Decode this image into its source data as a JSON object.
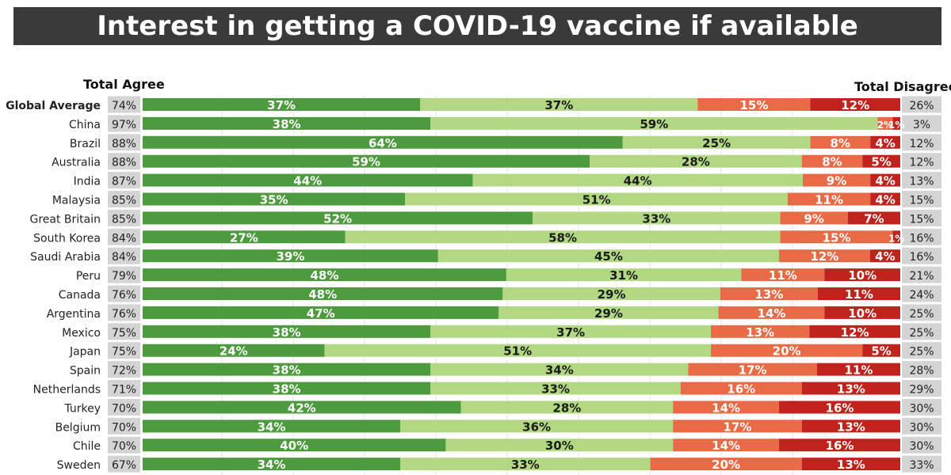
{
  "chart_data": {
    "type": "bar",
    "title": "Interest in getting a COVID-19 vaccine if available",
    "left_header": "Total Agree",
    "right_header": "Total Disagree",
    "segment_colors": [
      "#4e9a3f",
      "#b3d884",
      "#e86a47",
      "#c0231e"
    ],
    "rows": [
      {
        "label": "Global Average",
        "bold": true,
        "agree_total": "74%",
        "disagree_total": "26%",
        "values": [
          37,
          37,
          15,
          12
        ],
        "labels": [
          "37%",
          "37%",
          "15%",
          "12%"
        ]
      },
      {
        "label": "China",
        "agree_total": "97%",
        "disagree_total": "3%",
        "values": [
          38,
          59,
          2,
          1
        ],
        "labels": [
          "38%",
          "59%",
          "2%",
          "1%"
        ]
      },
      {
        "label": "Brazil",
        "agree_total": "88%",
        "disagree_total": "12%",
        "values": [
          64,
          25,
          8,
          4
        ],
        "labels": [
          "64%",
          "25%",
          "8%",
          "4%"
        ]
      },
      {
        "label": "Australia",
        "agree_total": "88%",
        "disagree_total": "12%",
        "values": [
          59,
          28,
          8,
          5
        ],
        "labels": [
          "59%",
          "28%",
          "8%",
          "5%"
        ]
      },
      {
        "label": "India",
        "agree_total": "87%",
        "disagree_total": "13%",
        "values": [
          44,
          44,
          9,
          4
        ],
        "labels": [
          "44%",
          "44%",
          "9%",
          "4%"
        ]
      },
      {
        "label": "Malaysia",
        "agree_total": "85%",
        "disagree_total": "15%",
        "values": [
          35,
          51,
          11,
          4
        ],
        "labels": [
          "35%",
          "51%",
          "11%",
          "4%"
        ]
      },
      {
        "label": "Great Britain",
        "agree_total": "85%",
        "disagree_total": "15%",
        "values": [
          52,
          33,
          9,
          7
        ],
        "labels": [
          "52%",
          "33%",
          "9%",
          "7%"
        ]
      },
      {
        "label": "South Korea",
        "agree_total": "84%",
        "disagree_total": "16%",
        "values": [
          27,
          58,
          15,
          1
        ],
        "labels": [
          "27%",
          "58%",
          "15%",
          "1%"
        ]
      },
      {
        "label": "Saudi Arabia",
        "agree_total": "84%",
        "disagree_total": "16%",
        "values": [
          39,
          45,
          12,
          4
        ],
        "labels": [
          "39%",
          "45%",
          "12%",
          "4%"
        ]
      },
      {
        "label": "Peru",
        "agree_total": "79%",
        "disagree_total": "21%",
        "values": [
          48,
          31,
          11,
          10
        ],
        "labels": [
          "48%",
          "31%",
          "11%",
          "10%"
        ]
      },
      {
        "label": "Canada",
        "agree_total": "76%",
        "disagree_total": "24%",
        "values": [
          48,
          29,
          13,
          11
        ],
        "labels": [
          "48%",
          "29%",
          "13%",
          "11%"
        ]
      },
      {
        "label": "Argentina",
        "agree_total": "76%",
        "disagree_total": "25%",
        "values": [
          47,
          29,
          14,
          10
        ],
        "labels": [
          "47%",
          "29%",
          "14%",
          "10%"
        ]
      },
      {
        "label": "Mexico",
        "agree_total": "75%",
        "disagree_total": "25%",
        "values": [
          38,
          37,
          13,
          12
        ],
        "labels": [
          "38%",
          "37%",
          "13%",
          "12%"
        ]
      },
      {
        "label": "Japan",
        "agree_total": "75%",
        "disagree_total": "25%",
        "values": [
          24,
          51,
          20,
          5
        ],
        "labels": [
          "24%",
          "51%",
          "20%",
          "5%"
        ]
      },
      {
        "label": "Spain",
        "agree_total": "72%",
        "disagree_total": "28%",
        "values": [
          38,
          34,
          17,
          11
        ],
        "labels": [
          "38%",
          "34%",
          "17%",
          "11%"
        ]
      },
      {
        "label": "Netherlands",
        "agree_total": "71%",
        "disagree_total": "29%",
        "values": [
          38,
          33,
          16,
          13
        ],
        "labels": [
          "38%",
          "33%",
          "16%",
          "13%"
        ]
      },
      {
        "label": "Turkey",
        "agree_total": "70%",
        "disagree_total": "30%",
        "values": [
          42,
          28,
          14,
          16
        ],
        "labels": [
          "42%",
          "28%",
          "14%",
          "16%"
        ]
      },
      {
        "label": "Belgium",
        "agree_total": "70%",
        "disagree_total": "30%",
        "values": [
          34,
          36,
          17,
          13
        ],
        "labels": [
          "34%",
          "36%",
          "17%",
          "13%"
        ]
      },
      {
        "label": "Chile",
        "agree_total": "70%",
        "disagree_total": "30%",
        "values": [
          40,
          30,
          14,
          16
        ],
        "labels": [
          "40%",
          "30%",
          "14%",
          "16%"
        ]
      },
      {
        "label": "Sweden",
        "agree_total": "67%",
        "disagree_total": "33%",
        "values": [
          34,
          33,
          20,
          13
        ],
        "labels": [
          "34%",
          "33%",
          "20%",
          "13%"
        ]
      }
    ]
  }
}
